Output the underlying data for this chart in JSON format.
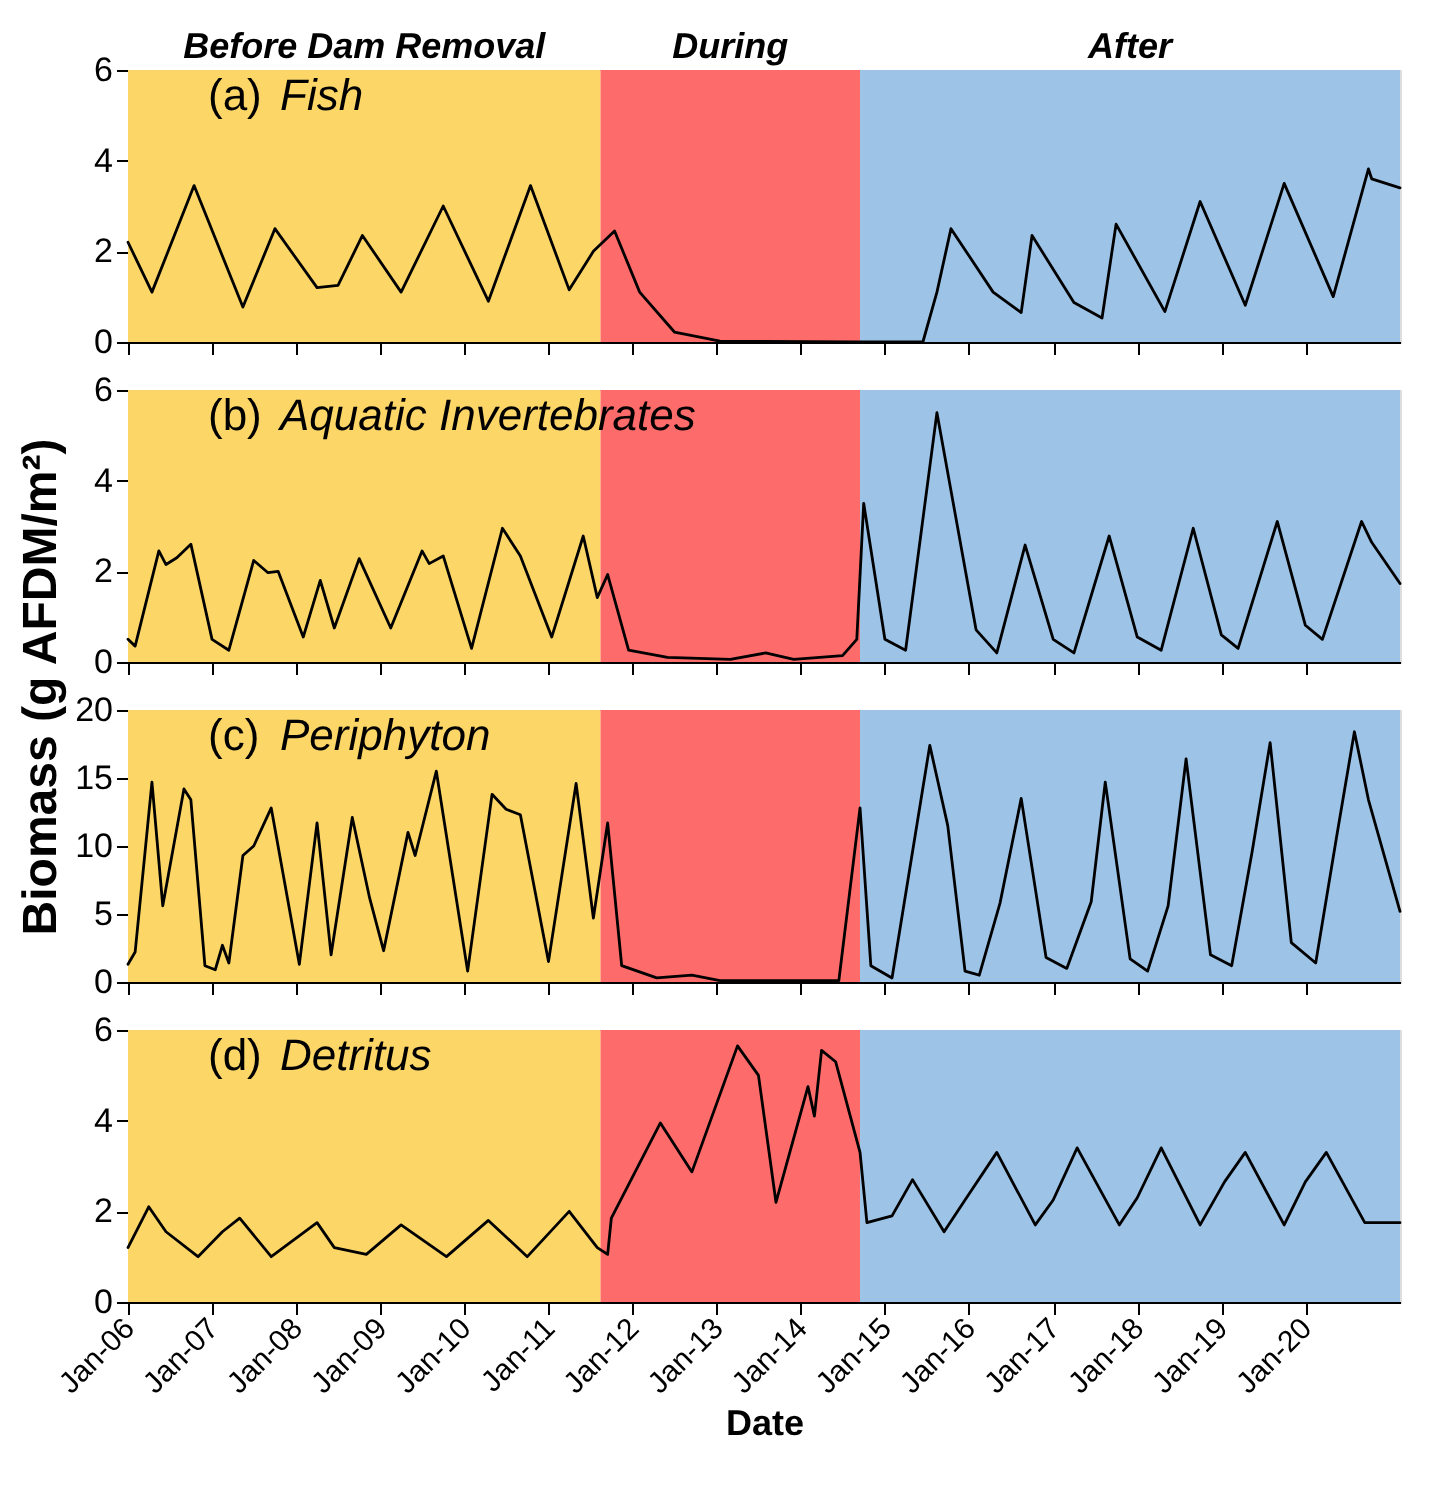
{
  "chart_data": [
    {
      "type": "line",
      "title": "(a) Fish",
      "xlim": [
        "2006-01-01",
        "2021-02-15"
      ],
      "ylim": [
        0,
        6
      ],
      "yticks": [
        0,
        2,
        4,
        6
      ],
      "xticks": [
        {
          "value": "2006-01-01",
          "label": null
        },
        {
          "value": "2007-01-01",
          "label": null
        },
        {
          "value": "2008-01-01",
          "label": null
        },
        {
          "value": "2009-01-01",
          "label": null
        },
        {
          "value": "2010-01-01",
          "label": null
        },
        {
          "value": "2011-01-01",
          "label": null
        },
        {
          "value": "2012-01-01",
          "label": null
        },
        {
          "value": "2013-01-01",
          "label": null
        },
        {
          "value": "2014-01-01",
          "label": null
        },
        {
          "value": "2015-01-01",
          "label": null
        },
        {
          "value": "2016-01-01",
          "label": null
        },
        {
          "value": "2017-01-01",
          "label": null
        },
        {
          "value": "2018-01-01",
          "label": null
        },
        {
          "value": "2019-01-01",
          "label": null
        },
        {
          "value": "2020-01-01",
          "label": null
        }
      ],
      "tick_labels": "y",
      "grid": false,
      "bands": [
        {
          "axis": "x",
          "from": "2006-01-01",
          "to": "2011-08-15",
          "label": "Before Dam Removal",
          "color": "#fcd667"
        },
        {
          "axis": "x",
          "from": "2011-08-15",
          "to": "2014-09-15",
          "label": "During",
          "color": "#fe6b6b"
        },
        {
          "axis": "x",
          "from": "2014-09-15",
          "to": "2021-02-15",
          "label": "After",
          "color": "#9dc3e6"
        }
      ],
      "series": [
        {
          "color": "#000000",
          "x": [
            "2006-01-01",
            "2006-04-15",
            "2006-10-15",
            "2007-05-15",
            "2007-10-01",
            "2008-04-01",
            "2008-07-01",
            "2008-10-15",
            "2009-04-01",
            "2009-10-01",
            "2010-04-15",
            "2010-10-15",
            "2011-04-01",
            "2011-07-15",
            "2011-10-15",
            "2012-02-01",
            "2012-07-01",
            "2013-01-15",
            "2014-09-01",
            "2015-06-15",
            "2015-08-15",
            "2015-10-15",
            "2016-04-15",
            "2016-08-15",
            "2016-10-01",
            "2017-04-01",
            "2017-08-01",
            "2017-10-01",
            "2018-05-01",
            "2018-10-01",
            "2019-04-15",
            "2019-10-01",
            "2020-05-01",
            "2020-10-01",
            "2020-10-15",
            "2021-02-15"
          ],
          "values": [
            2.2,
            1.1,
            3.45,
            0.77,
            2.5,
            1.2,
            1.25,
            2.35,
            1.1,
            3.0,
            0.9,
            3.45,
            1.15,
            2.0,
            2.45,
            1.1,
            0.22,
            0.02,
            0,
            0,
            1.1,
            2.5,
            1.1,
            0.65,
            2.35,
            0.87,
            0.53,
            2.6,
            0.67,
            3.1,
            0.81,
            3.5,
            1.0,
            3.82,
            3.6,
            3.4
          ]
        }
      ]
    },
    {
      "type": "line",
      "title": "(b) Aquatic Invertebrates",
      "ylabel": "Biomass (g AFDM/m²)",
      "xlim": [
        "2006-01-01",
        "2021-02-15"
      ],
      "ylim": [
        0,
        6
      ],
      "yticks": [
        0,
        2,
        4,
        6
      ],
      "xticks": [
        {
          "value": "2006-01-01",
          "label": null
        },
        {
          "value": "2007-01-01",
          "label": null
        },
        {
          "value": "2008-01-01",
          "label": null
        },
        {
          "value": "2009-01-01",
          "label": null
        },
        {
          "value": "2010-01-01",
          "label": null
        },
        {
          "value": "2011-01-01",
          "label": null
        },
        {
          "value": "2012-01-01",
          "label": null
        },
        {
          "value": "2013-01-01",
          "label": null
        },
        {
          "value": "2014-01-01",
          "label": null
        },
        {
          "value": "2015-01-01",
          "label": null
        },
        {
          "value": "2016-01-01",
          "label": null
        },
        {
          "value": "2017-01-01",
          "label": null
        },
        {
          "value": "2018-01-01",
          "label": null
        },
        {
          "value": "2019-01-01",
          "label": null
        },
        {
          "value": "2020-01-01",
          "label": null
        }
      ],
      "tick_labels": "y",
      "grid": false,
      "bands": [
        {
          "axis": "x",
          "from": "2006-01-01",
          "to": "2011-08-15",
          "color": "#fcd667"
        },
        {
          "axis": "x",
          "from": "2011-08-15",
          "to": "2014-09-15",
          "color": "#fe6b6b"
        },
        {
          "axis": "x",
          "from": "2014-09-15",
          "to": "2021-02-15",
          "color": "#9dc3e6"
        }
      ],
      "series": [
        {
          "color": "#000000",
          "x": [
            "2006-01-01",
            "2006-02-01",
            "2006-05-15",
            "2006-06-15",
            "2006-08-01",
            "2006-10-01",
            "2007-01-01",
            "2007-03-15",
            "2007-07-01",
            "2007-09-01",
            "2007-10-15",
            "2008-02-01",
            "2008-04-15",
            "2008-06-15",
            "2008-10-01",
            "2009-02-15",
            "2009-07-01",
            "2009-08-01",
            "2009-10-01",
            "2010-02-01",
            "2010-06-15",
            "2010-09-01",
            "2011-01-15",
            "2011-06-01",
            "2011-08-01",
            "2011-09-15",
            "2011-12-15",
            "2012-06-01",
            "2013-03-01",
            "2013-08-01",
            "2013-12-01",
            "2014-07-01",
            "2014-09-01",
            "2014-10-01",
            "2015-01-01",
            "2015-04-01",
            "2015-08-15",
            "2016-02-01",
            "2016-05-01",
            "2016-09-01",
            "2017-01-01",
            "2017-04-01",
            "2017-09-01",
            "2018-01-01",
            "2018-04-15",
            "2018-09-01",
            "2019-01-01",
            "2019-03-15",
            "2019-09-01",
            "2020-01-01",
            "2020-03-15",
            "2020-09-01",
            "2020-10-15",
            "2021-02-15"
          ],
          "values": [
            0.5,
            0.35,
            2.45,
            2.15,
            2.3,
            2.6,
            0.5,
            0.26,
            2.24,
            1.97,
            2.0,
            0.55,
            1.8,
            0.75,
            2.28,
            0.75,
            2.45,
            2.17,
            2.34,
            0.3,
            2.95,
            2.34,
            0.55,
            2.78,
            1.42,
            1.93,
            0.26,
            0.1,
            0.06,
            0.2,
            0.06,
            0.14,
            0.5,
            3.5,
            0.5,
            0.26,
            5.5,
            0.71,
            0.2,
            2.58,
            0.5,
            0.2,
            2.78,
            0.55,
            0.26,
            2.95,
            0.6,
            0.3,
            3.1,
            0.81,
            0.5,
            3.1,
            2.64,
            1.73
          ]
        }
      ]
    },
    {
      "type": "line",
      "title": "(c) Periphyton",
      "xlim": [
        "2006-01-01",
        "2021-02-15"
      ],
      "ylim": [
        0,
        20
      ],
      "yticks": [
        0,
        5,
        10,
        15,
        20
      ],
      "xticks": [
        {
          "value": "2006-01-01",
          "label": null
        },
        {
          "value": "2007-01-01",
          "label": null
        },
        {
          "value": "2008-01-01",
          "label": null
        },
        {
          "value": "2009-01-01",
          "label": null
        },
        {
          "value": "2010-01-01",
          "label": null
        },
        {
          "value": "2011-01-01",
          "label": null
        },
        {
          "value": "2012-01-01",
          "label": null
        },
        {
          "value": "2013-01-01",
          "label": null
        },
        {
          "value": "2014-01-01",
          "label": null
        },
        {
          "value": "2015-01-01",
          "label": null
        },
        {
          "value": "2016-01-01",
          "label": null
        },
        {
          "value": "2017-01-01",
          "label": null
        },
        {
          "value": "2018-01-01",
          "label": null
        },
        {
          "value": "2019-01-01",
          "label": null
        },
        {
          "value": "2020-01-01",
          "label": null
        }
      ],
      "tick_labels": "y",
      "grid": false,
      "bands": [
        {
          "axis": "x",
          "from": "2006-01-01",
          "to": "2011-08-15",
          "color": "#fcd667"
        },
        {
          "axis": "x",
          "from": "2011-08-15",
          "to": "2014-09-15",
          "color": "#fe6b6b"
        },
        {
          "axis": "x",
          "from": "2014-09-15",
          "to": "2021-02-15",
          "color": "#9dc3e6"
        }
      ],
      "series": [
        {
          "color": "#000000",
          "x": [
            "2006-01-01",
            "2006-02-01",
            "2006-04-15",
            "2006-06-01",
            "2006-09-01",
            "2006-10-01",
            "2006-12-01",
            "2007-01-15",
            "2007-02-15",
            "2007-03-15",
            "2007-05-15",
            "2007-07-01",
            "2007-09-15",
            "2008-01-15",
            "2008-04-01",
            "2008-06-01",
            "2008-09-01",
            "2008-11-15",
            "2009-01-15",
            "2009-05-01",
            "2009-06-01",
            "2009-09-01",
            "2010-01-15",
            "2010-05-01",
            "2010-07-01",
            "2010-09-01",
            "2011-01-01",
            "2011-05-01",
            "2011-07-15",
            "2011-09-15",
            "2011-11-15",
            "2012-04-15",
            "2012-09-15",
            "2013-01-15",
            "2014-06-15",
            "2014-09-15",
            "2014-11-01",
            "2015-02-01",
            "2015-07-15",
            "2015-10-01",
            "2015-12-15",
            "2016-02-15",
            "2016-05-15",
            "2016-08-15",
            "2016-12-01",
            "2017-03-01",
            "2017-06-15",
            "2017-08-15",
            "2017-12-01",
            "2018-02-15",
            "2018-05-15",
            "2018-08-01",
            "2018-11-15",
            "2019-02-15",
            "2019-05-15",
            "2019-08-01",
            "2019-11-01",
            "2020-02-15",
            "2020-05-15",
            "2020-08-01",
            "2020-10-01",
            "2021-02-15"
          ],
          "values": [
            1.3,
            2.2,
            14.7,
            5.6,
            14.2,
            13.4,
            1.2,
            0.9,
            2.7,
            1.4,
            9.3,
            10.0,
            12.8,
            1.3,
            11.7,
            2.0,
            12.1,
            6.2,
            2.3,
            11.0,
            9.3,
            15.5,
            0.8,
            13.8,
            12.7,
            12.3,
            1.5,
            14.6,
            4.7,
            11.7,
            1.2,
            0.3,
            0.5,
            0.1,
            0.1,
            12.8,
            1.2,
            0.3,
            17.4,
            11.5,
            0.8,
            0.5,
            5.8,
            13.5,
            1.8,
            1.0,
            5.9,
            14.7,
            1.7,
            0.8,
            5.6,
            16.4,
            2.0,
            1.2,
            9.6,
            17.6,
            2.9,
            1.4,
            10.6,
            18.4,
            13.4,
            5.2
          ]
        }
      ]
    },
    {
      "type": "line",
      "title": "(d) Detritus",
      "xlabel": "Date",
      "xlim": [
        "2006-01-01",
        "2021-02-15"
      ],
      "ylim": [
        0,
        6
      ],
      "yticks": [
        0,
        2,
        4,
        6
      ],
      "xticks": [
        {
          "value": "2006-01-01",
          "label": "Jan-06"
        },
        {
          "value": "2007-01-01",
          "label": "Jan-07"
        },
        {
          "value": "2008-01-01",
          "label": "Jan-08"
        },
        {
          "value": "2009-01-01",
          "label": "Jan-09"
        },
        {
          "value": "2010-01-01",
          "label": "Jan-10"
        },
        {
          "value": "2011-01-01",
          "label": "Jan-11"
        },
        {
          "value": "2012-01-01",
          "label": "Jan-12"
        },
        {
          "value": "2013-01-01",
          "label": "Jan-13"
        },
        {
          "value": "2014-01-01",
          "label": "Jan-14"
        },
        {
          "value": "2015-01-01",
          "label": "Jan-15"
        },
        {
          "value": "2016-01-01",
          "label": "Jan-16"
        },
        {
          "value": "2017-01-01",
          "label": "Jan-17"
        },
        {
          "value": "2018-01-01",
          "label": "Jan-18"
        },
        {
          "value": "2019-01-01",
          "label": "Jan-19"
        },
        {
          "value": "2020-01-01",
          "label": "Jan-20"
        }
      ],
      "grid": false,
      "bands": [
        {
          "axis": "x",
          "from": "2006-01-01",
          "to": "2011-08-15",
          "color": "#fcd667"
        },
        {
          "axis": "x",
          "from": "2011-08-15",
          "to": "2014-09-15",
          "color": "#fe6b6b"
        },
        {
          "axis": "x",
          "from": "2014-09-15",
          "to": "2021-02-15",
          "color": "#9dc3e6"
        }
      ],
      "series": [
        {
          "color": "#000000",
          "x": [
            "2006-01-01",
            "2006-04-01",
            "2006-06-15",
            "2006-11-01",
            "2007-02-15",
            "2007-05-01",
            "2007-09-15",
            "2008-04-01",
            "2008-06-15",
            "2008-11-01",
            "2009-04-01",
            "2009-10-15",
            "2010-04-15",
            "2010-10-01",
            "2011-04-01",
            "2011-08-01",
            "2011-09-15",
            "2011-10-01",
            "2012-05-01",
            "2012-09-15",
            "2013-04-01",
            "2013-07-01",
            "2013-09-15",
            "2014-02-01",
            "2014-03-01",
            "2014-04-01",
            "2014-06-01",
            "2014-09-15",
            "2014-10-15",
            "2015-02-01",
            "2015-05-01",
            "2015-09-15",
            "2015-12-15",
            "2016-05-01",
            "2016-10-15",
            "2017-01-01",
            "2017-04-15",
            "2017-10-15",
            "2018-01-01",
            "2018-04-15",
            "2018-10-01",
            "2019-01-15",
            "2019-04-15",
            "2019-10-01",
            "2020-01-01",
            "2020-04-01",
            "2020-09-15",
            "2021-02-15"
          ],
          "values": [
            1.2,
            2.1,
            1.55,
            1.0,
            1.55,
            1.85,
            1.0,
            1.75,
            1.2,
            1.05,
            1.7,
            1.0,
            1.8,
            1.0,
            2.0,
            1.2,
            1.05,
            1.85,
            3.95,
            2.87,
            5.65,
            5.0,
            2.2,
            4.75,
            4.1,
            5.55,
            5.3,
            3.3,
            1.75,
            1.9,
            2.7,
            1.55,
            2.25,
            3.3,
            1.7,
            2.25,
            3.4,
            1.7,
            2.3,
            3.4,
            1.7,
            2.65,
            3.3,
            1.7,
            2.65,
            3.3,
            1.75,
            1.75
          ]
        }
      ]
    }
  ]
}
